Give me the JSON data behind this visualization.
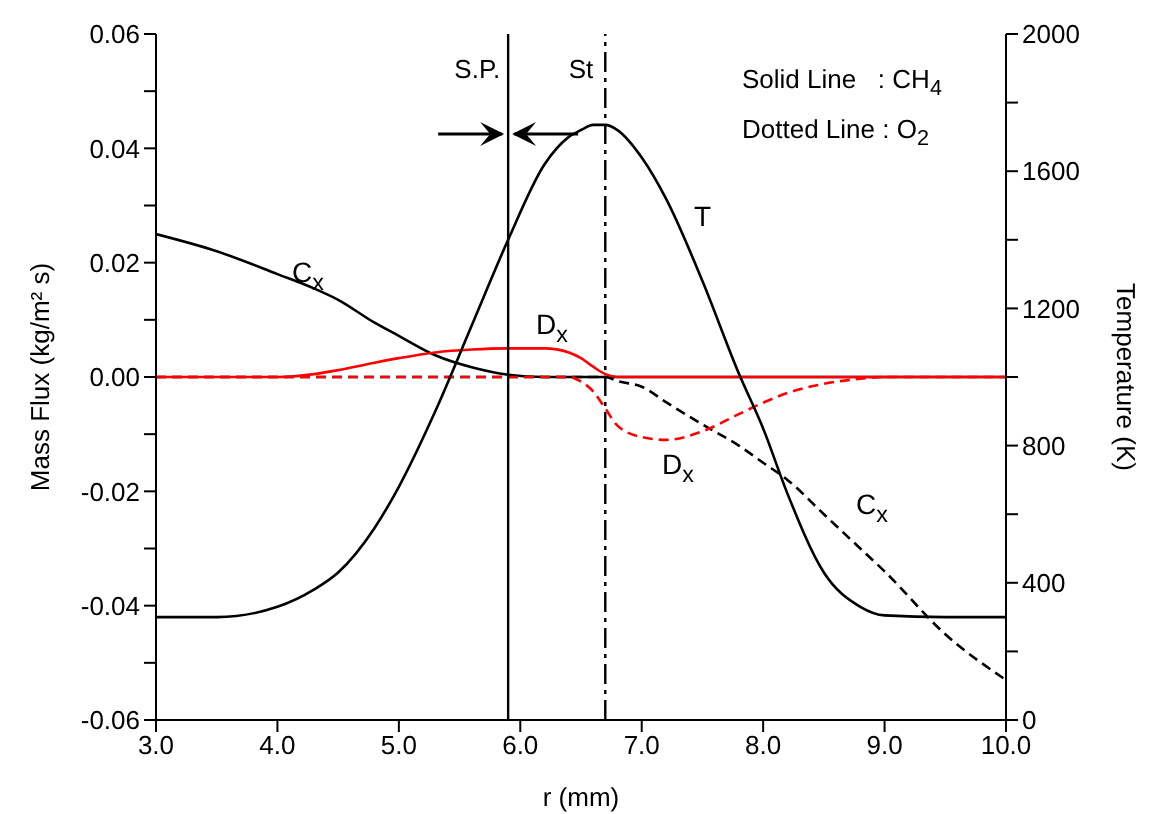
{
  "chart_data": {
    "type": "line",
    "xlabel": "r (mm)",
    "ylabel": "Mass Flux (kg/m² s)",
    "y2label": "Temperature (K)",
    "x": [
      3.0,
      3.5,
      4.0,
      4.3,
      4.5,
      4.8,
      5.0,
      5.3,
      5.6,
      5.9,
      6.2,
      6.4,
      6.5,
      6.6,
      6.7,
      6.8,
      7.0,
      7.2,
      7.5,
      7.8,
      8.0,
      8.2,
      8.5,
      8.8,
      9.0,
      9.5,
      10.0
    ],
    "series": [
      {
        "color": "#000000",
        "line_style": "solid",
        "values": [
          0.025,
          0.022,
          0.018,
          0.0155,
          0.0135,
          0.0095,
          0.0072,
          0.0038,
          0.0017,
          0.0004,
          0,
          0,
          0,
          0,
          0,
          0,
          0,
          0,
          0,
          0,
          0,
          0,
          0,
          0,
          0,
          0,
          0
        ]
      },
      {
        "color": "#000000",
        "line_style": "dashed",
        "values": [
          0,
          0,
          0,
          0,
          0,
          0,
          0,
          0,
          0,
          0,
          0,
          0,
          0,
          0,
          0,
          -0.0007,
          -0.0017,
          -0.0044,
          -0.0083,
          -0.012,
          -0.015,
          -0.018,
          -0.024,
          -0.03,
          -0.034,
          -0.045,
          -0.053
        ]
      },
      {
        "color": "#ff0000",
        "line_style": "solid",
        "values": [
          0,
          0,
          0,
          0.0005,
          0.0012,
          0.0025,
          0.0033,
          0.0043,
          0.0048,
          0.005,
          0.005,
          0.0043,
          0.0033,
          0.0018,
          0.0005,
          0,
          0,
          0,
          0,
          0,
          0,
          0,
          0,
          0,
          0,
          0,
          0
        ]
      },
      {
        "color": "#ff0000",
        "line_style": "dashed",
        "values": [
          0,
          0,
          0,
          0,
          0,
          0,
          0,
          0,
          0,
          0,
          0,
          0,
          -0.0008,
          -0.0025,
          -0.0055,
          -0.0085,
          -0.0105,
          -0.011,
          -0.0095,
          -0.0065,
          -0.0045,
          -0.0028,
          -0.0012,
          -0.0003,
          0,
          0,
          0
        ]
      },
      {
        "color": "#000000",
        "line_style": "solid",
        "axis": "y2",
        "values": [
          300,
          300,
          330,
          380,
          430,
          560,
          680,
          900,
          1150,
          1400,
          1620,
          1700,
          1720,
          1735,
          1735,
          1720,
          1640,
          1520,
          1280,
          1010,
          850,
          660,
          430,
          330,
          305,
          300,
          300
        ]
      }
    ],
    "xlim": [
      3.0,
      10.0
    ],
    "xticks": [
      {
        "value": 3,
        "label": "3.0"
      },
      {
        "value": 4,
        "label": "4.0"
      },
      {
        "value": 5,
        "label": "5.0"
      },
      {
        "value": 6,
        "label": "6.0"
      },
      {
        "value": 7,
        "label": "7.0"
      },
      {
        "value": 8,
        "label": "8.0"
      },
      {
        "value": 9,
        "label": "9.0"
      },
      {
        "value": 10,
        "label": "10.0"
      }
    ],
    "ylim": [
      -0.06,
      0.06
    ],
    "yticks": [
      {
        "value": -0.06,
        "label": "-0.06"
      },
      {
        "value": -0.05,
        "label": null
      },
      {
        "value": -0.04,
        "label": "-0.04"
      },
      {
        "value": -0.03,
        "label": null
      },
      {
        "value": -0.02,
        "label": "-0.02"
      },
      {
        "value": -0.01,
        "label": null
      },
      {
        "value": 0,
        "label": "0.00"
      },
      {
        "value": 0.01,
        "label": null
      },
      {
        "value": 0.02,
        "label": "0.02"
      },
      {
        "value": 0.03,
        "label": null
      },
      {
        "value": 0.04,
        "label": "0.04"
      },
      {
        "value": 0.05,
        "label": null
      },
      {
        "value": 0.06,
        "label": "0.06"
      }
    ],
    "y2lim": [
      0,
      2000
    ],
    "y2ticks": [
      0,
      {
        "value": 200,
        "label": null
      },
      400,
      {
        "value": 600,
        "label": null
      },
      800,
      {
        "value": 1000,
        "label": null
      },
      1200,
      {
        "value": 1400,
        "label": null
      },
      1600,
      {
        "value": 1800,
        "label": null
      },
      2000
    ],
    "ref_lines": [
      {
        "axis": "x",
        "value": 5.9,
        "label": "S.P.",
        "line_style": "solid",
        "color": "#000000"
      },
      {
        "axis": "x",
        "value": 6.7,
        "label": "St",
        "line_style": "dashed",
        "color": "#000000"
      }
    ],
    "annotations": [
      "C$_{x}$",
      "D$_{x}$",
      "T",
      "D$_{x}$",
      "C$_{x}$",
      "Solid Line   : CH$_{4}$",
      "Dotted Line : O$_{2}$"
    ],
    "grid": false,
    "legend": false
  }
}
